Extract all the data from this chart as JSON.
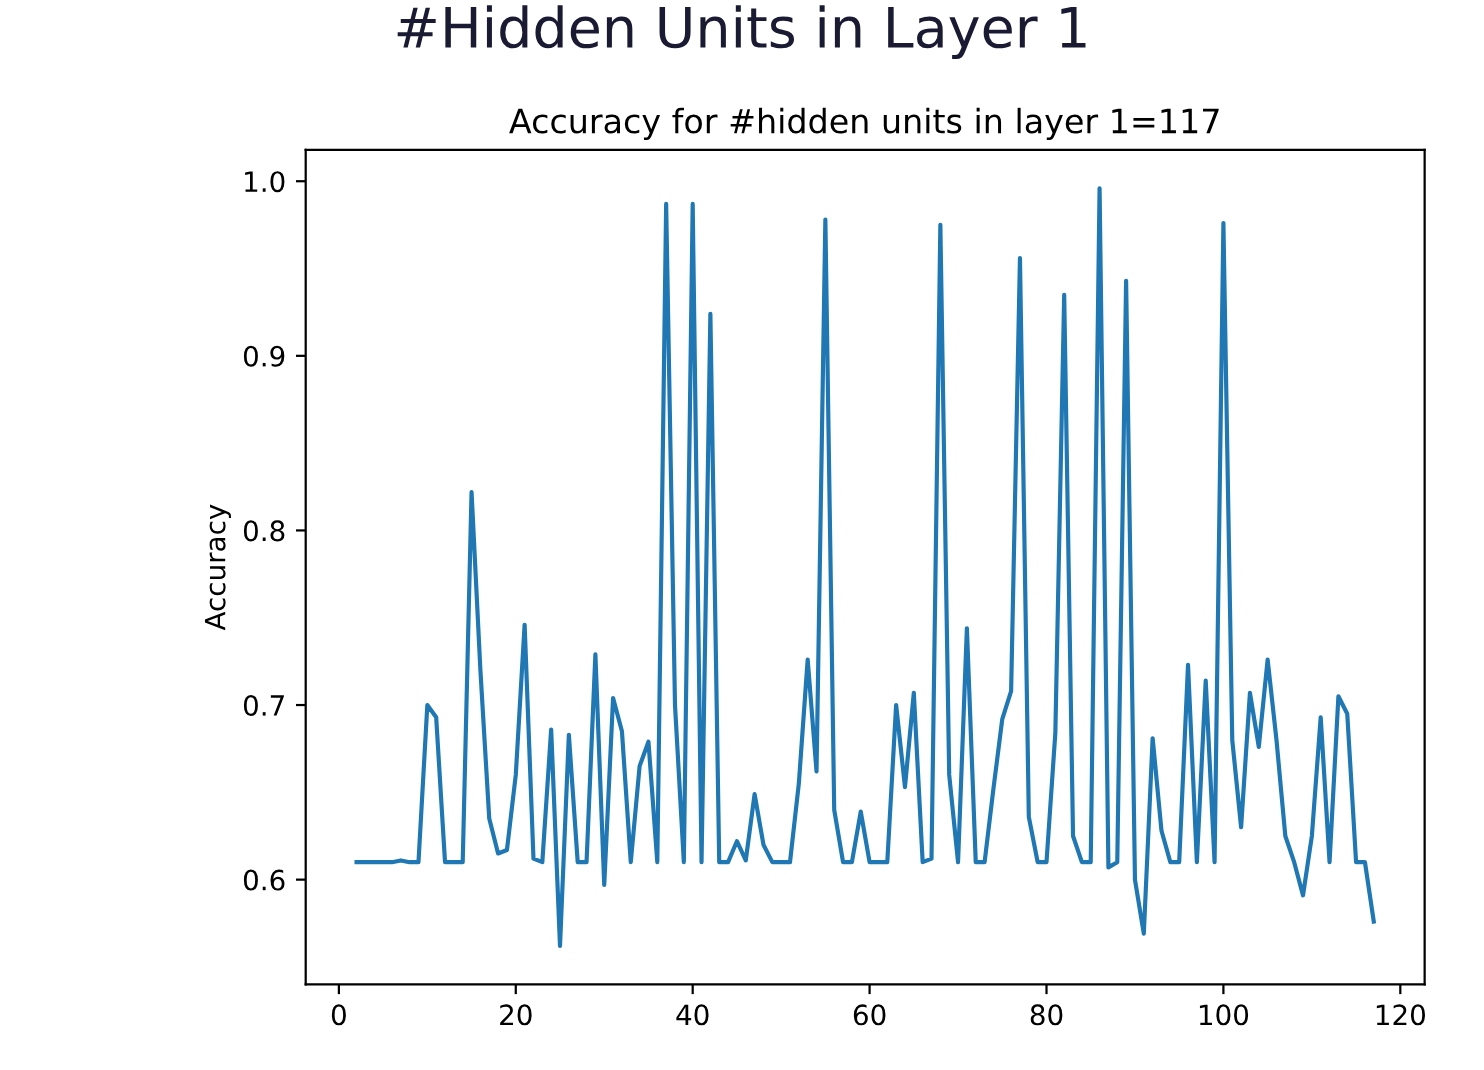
{
  "chart_data": {
    "type": "line",
    "title": "#Hidden Units in Layer 1",
    "subtitle": "Accuracy for #hidden units in layer 1=117",
    "ylabel": "Accuracy",
    "x": [
      2,
      3,
      4,
      5,
      6,
      7,
      8,
      9,
      10,
      11,
      12,
      13,
      14,
      15,
      16,
      17,
      18,
      19,
      20,
      21,
      22,
      23,
      24,
      25,
      26,
      27,
      28,
      29,
      30,
      31,
      32,
      33,
      34,
      35,
      36,
      37,
      38,
      39,
      40,
      41,
      42,
      43,
      44,
      45,
      46,
      47,
      48,
      49,
      50,
      51,
      52,
      53,
      54,
      55,
      56,
      57,
      58,
      59,
      60,
      61,
      62,
      63,
      64,
      65,
      66,
      67,
      68,
      69,
      70,
      71,
      72,
      73,
      74,
      75,
      76,
      77,
      78,
      79,
      80,
      81,
      82,
      83,
      84,
      85,
      86,
      87,
      88,
      89,
      90,
      91,
      92,
      93,
      94,
      95,
      96,
      97,
      98,
      99,
      100,
      101,
      102,
      103,
      104,
      105,
      106,
      107,
      108,
      109,
      110,
      111,
      112,
      113,
      114,
      115,
      116,
      117
    ],
    "series": [
      {
        "color": "#1f77b4",
        "values": [
          0.61,
          0.61,
          0.61,
          0.61,
          0.61,
          0.611,
          0.61,
          0.61,
          0.7,
          0.693,
          0.61,
          0.61,
          0.61,
          0.822,
          0.72,
          0.635,
          0.615,
          0.617,
          0.66,
          0.746,
          0.612,
          0.61,
          0.686,
          0.562,
          0.683,
          0.61,
          0.61,
          0.729,
          0.597,
          0.704,
          0.685,
          0.61,
          0.665,
          0.679,
          0.61,
          0.987,
          0.7,
          0.61,
          0.987,
          0.61,
          0.924,
          0.61,
          0.61,
          0.622,
          0.611,
          0.649,
          0.62,
          0.61,
          0.61,
          0.61,
          0.655,
          0.726,
          0.662,
          0.978,
          0.64,
          0.61,
          0.61,
          0.639,
          0.61,
          0.61,
          0.61,
          0.7,
          0.653,
          0.707,
          0.61,
          0.612,
          0.975,
          0.66,
          0.61,
          0.744,
          0.61,
          0.61,
          0.652,
          0.692,
          0.708,
          0.956,
          0.636,
          0.61,
          0.61,
          0.684,
          0.935,
          0.625,
          0.61,
          0.61,
          0.996,
          0.607,
          0.61,
          0.943,
          0.6,
          0.569,
          0.681,
          0.628,
          0.61,
          0.61,
          0.723,
          0.61,
          0.714,
          0.61,
          0.976,
          0.68,
          0.63,
          0.707,
          0.676,
          0.726,
          0.68,
          0.625,
          0.61,
          0.591,
          0.625,
          0.693,
          0.61,
          0.705,
          0.695,
          0.61,
          0.61,
          0.576
        ]
      }
    ],
    "xlim": [
      -3.75,
      122.75
    ],
    "xticks": [
      0,
      20,
      40,
      60,
      80,
      100,
      120
    ],
    "ylim": [
      0.54,
      1.018
    ],
    "yticks": [
      0.6,
      0.7,
      0.8,
      0.9,
      {
        "value": 1,
        "label": "1.0"
      }
    ],
    "grid": false,
    "legend": false,
    "marker": "none",
    "line_style": "solid"
  }
}
